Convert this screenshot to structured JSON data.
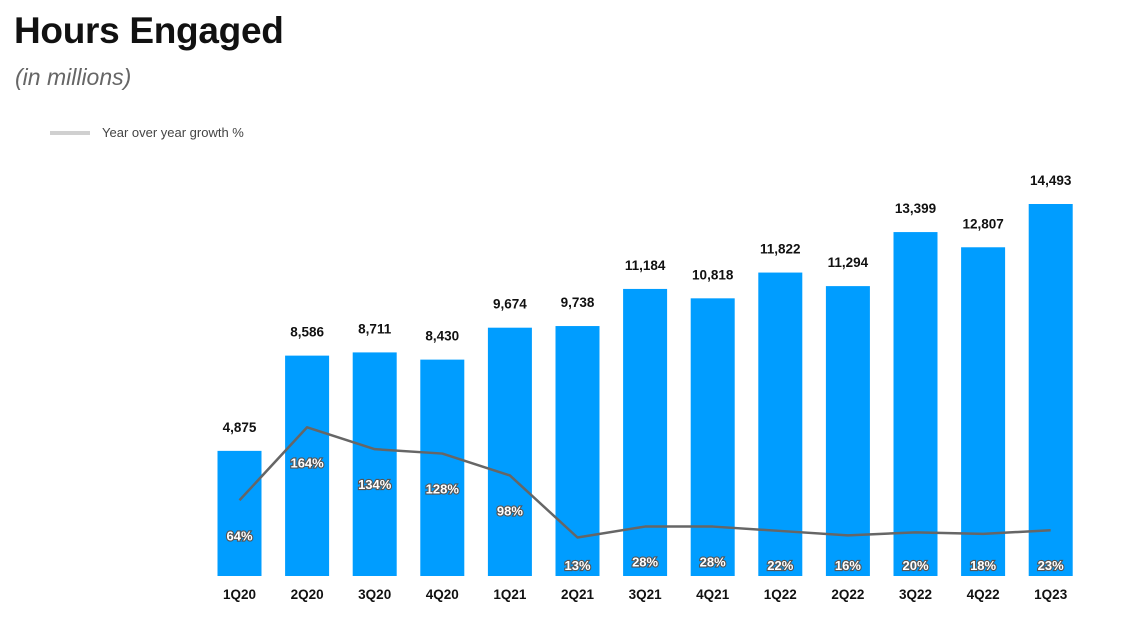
{
  "title": "Hours Engaged",
  "subtitle": "(in millions)",
  "legend": {
    "line_label": "Year over year growth %"
  },
  "colors": {
    "bar": "#009dff",
    "line": "#666666",
    "legend_swatch": "#d0d0d0"
  },
  "chart_data": {
    "type": "bar",
    "title": "Hours Engaged",
    "subtitle": "(in millions)",
    "categories": [
      "1Q20",
      "2Q20",
      "3Q20",
      "4Q20",
      "1Q21",
      "2Q21",
      "3Q21",
      "4Q21",
      "1Q22",
      "2Q22",
      "3Q22",
      "4Q22",
      "1Q23"
    ],
    "series": [
      {
        "type": "bar",
        "values": [
          4875,
          8586,
          8711,
          8430,
          9674,
          9738,
          11184,
          10818,
          11822,
          11294,
          13399,
          12807,
          14493
        ],
        "labels": [
          "4,875",
          "8,586",
          "8,711",
          "8,430",
          "9,674",
          "9,738",
          "11,184",
          "10,818",
          "11,822",
          "11,294",
          "13,399",
          "12,807",
          "14,493"
        ]
      },
      {
        "name": "Year over year growth %",
        "type": "line",
        "values": [
          64,
          164,
          134,
          128,
          98,
          13,
          28,
          28,
          22,
          16,
          20,
          18,
          23
        ],
        "labels": [
          "64%",
          "164%",
          "134%",
          "128%",
          "98%",
          "13%",
          "28%",
          "28%",
          "22%",
          "16%",
          "20%",
          "18%",
          "23%"
        ]
      }
    ],
    "legend": "top-left",
    "grid": false
  }
}
